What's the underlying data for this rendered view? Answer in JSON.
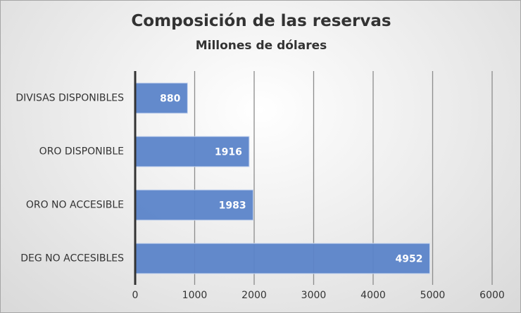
{
  "chart_data": {
    "type": "bar",
    "orientation": "horizontal",
    "title": "Composición de las reservas",
    "subtitle": "Millones de dólares",
    "categories": [
      "DIVISAS DISPONIBLES",
      "ORO DISPONIBLE",
      "ORO NO ACCESIBLE",
      "DEG NO ACCESIBLES"
    ],
    "values": [
      880,
      1916,
      1983,
      4952
    ],
    "xlim": [
      0,
      6000
    ],
    "xticks": [
      0,
      1000,
      2000,
      3000,
      4000,
      5000,
      6000
    ],
    "xlabel": "",
    "ylabel": "",
    "grid": true,
    "bar_color": "#5b84c9"
  }
}
